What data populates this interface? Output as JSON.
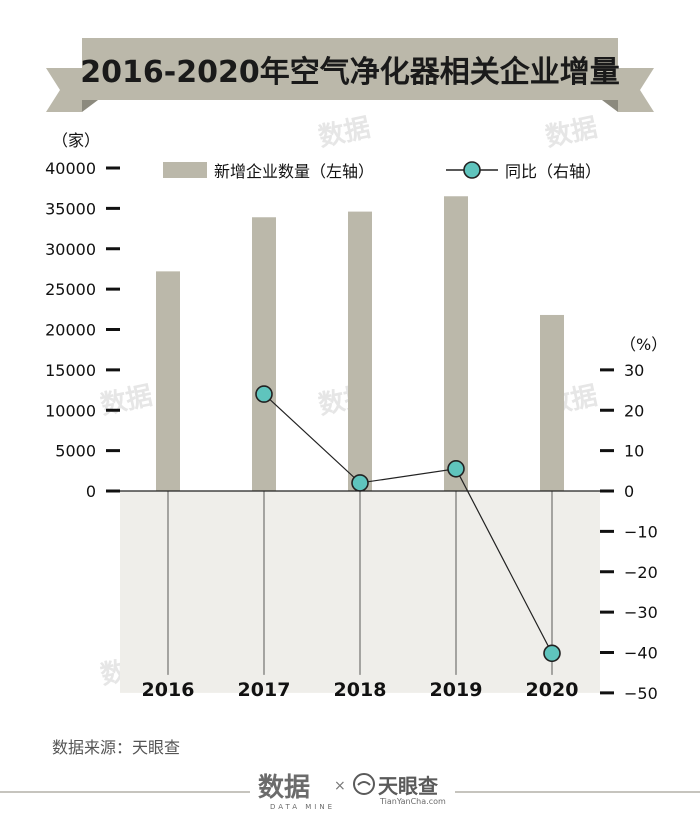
{
  "title": "2016-2020年空气净化器相关企业增量",
  "source": "数据来源：天眼查",
  "footer": {
    "logo_left": "数据",
    "logo_left_sub": "DATA MINE",
    "times": "×",
    "logo_right": "天眼查",
    "logo_right_url": "TianYanCha.com"
  },
  "watermark": "数据",
  "colors": {
    "bar": "#bbb8aa",
    "negative_bg": "#efeeea",
    "line": "#222222",
    "marker": "#5fc4bd",
    "banner": "#bbb8aa",
    "banner_fold": "#8c8a7e"
  },
  "chart_data": {
    "type": "bar",
    "categories": [
      "2016",
      "2017",
      "2018",
      "2019",
      "2020"
    ],
    "left_axis": {
      "unit_label": "（家）",
      "ylim": [
        0,
        40000
      ],
      "ticks": [
        "0",
        "5000",
        "10000",
        "15000",
        "20000",
        "25000",
        "30000",
        "35000",
        "40000"
      ]
    },
    "right_axis": {
      "unit_label": "（%）",
      "ylim": [
        -50,
        30
      ],
      "ticks": [
        "30",
        "20",
        "10",
        "0",
        "−10",
        "−20",
        "−30",
        "−40",
        "−50"
      ]
    },
    "series": [
      {
        "name": "新增企业数量（左轴）",
        "type": "bar",
        "axis": "left",
        "values": [
          27200,
          33900,
          34600,
          36500,
          21800
        ]
      },
      {
        "name": "同比（右轴）",
        "type": "line",
        "axis": "right",
        "values": [
          null,
          24,
          2,
          5.5,
          -40.2
        ]
      }
    ],
    "legend_position": "top"
  }
}
